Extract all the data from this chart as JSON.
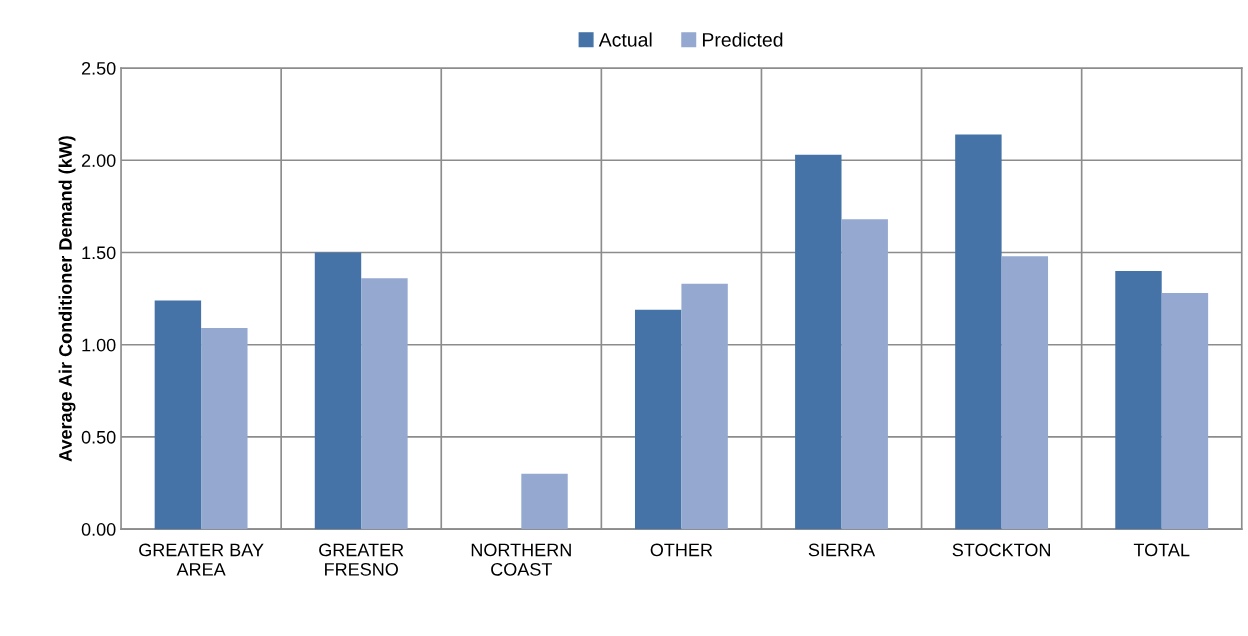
{
  "chart_data": {
    "type": "bar",
    "ylabel": "Average Air Conditioner Demand (kW)",
    "categories": [
      "GREATER BAY\nAREA",
      "GREATER\nFRESNO",
      "NORTHERN\nCOAST",
      "OTHER",
      "SIERRA",
      "STOCKTON",
      "TOTAL"
    ],
    "series": [
      {
        "name": "Actual",
        "color": "#4573a7",
        "values": [
          1.24,
          1.5,
          null,
          1.19,
          2.03,
          2.14,
          1.4
        ]
      },
      {
        "name": "Predicted",
        "color": "#95a9d0",
        "values": [
          1.09,
          1.36,
          0.3,
          1.33,
          1.68,
          1.48,
          1.28
        ]
      }
    ],
    "ylim": [
      0,
      2.5
    ],
    "yticks": [
      {
        "value": 0,
        "label": "0.00"
      },
      {
        "value": 0.5,
        "label": "0.50"
      },
      {
        "value": 1,
        "label": "1.00"
      },
      {
        "value": 1.5,
        "label": "1.50"
      },
      {
        "value": 2,
        "label": "2.00"
      },
      {
        "value": 2.5,
        "label": "2.50"
      }
    ],
    "grid": true,
    "legend": "top"
  }
}
